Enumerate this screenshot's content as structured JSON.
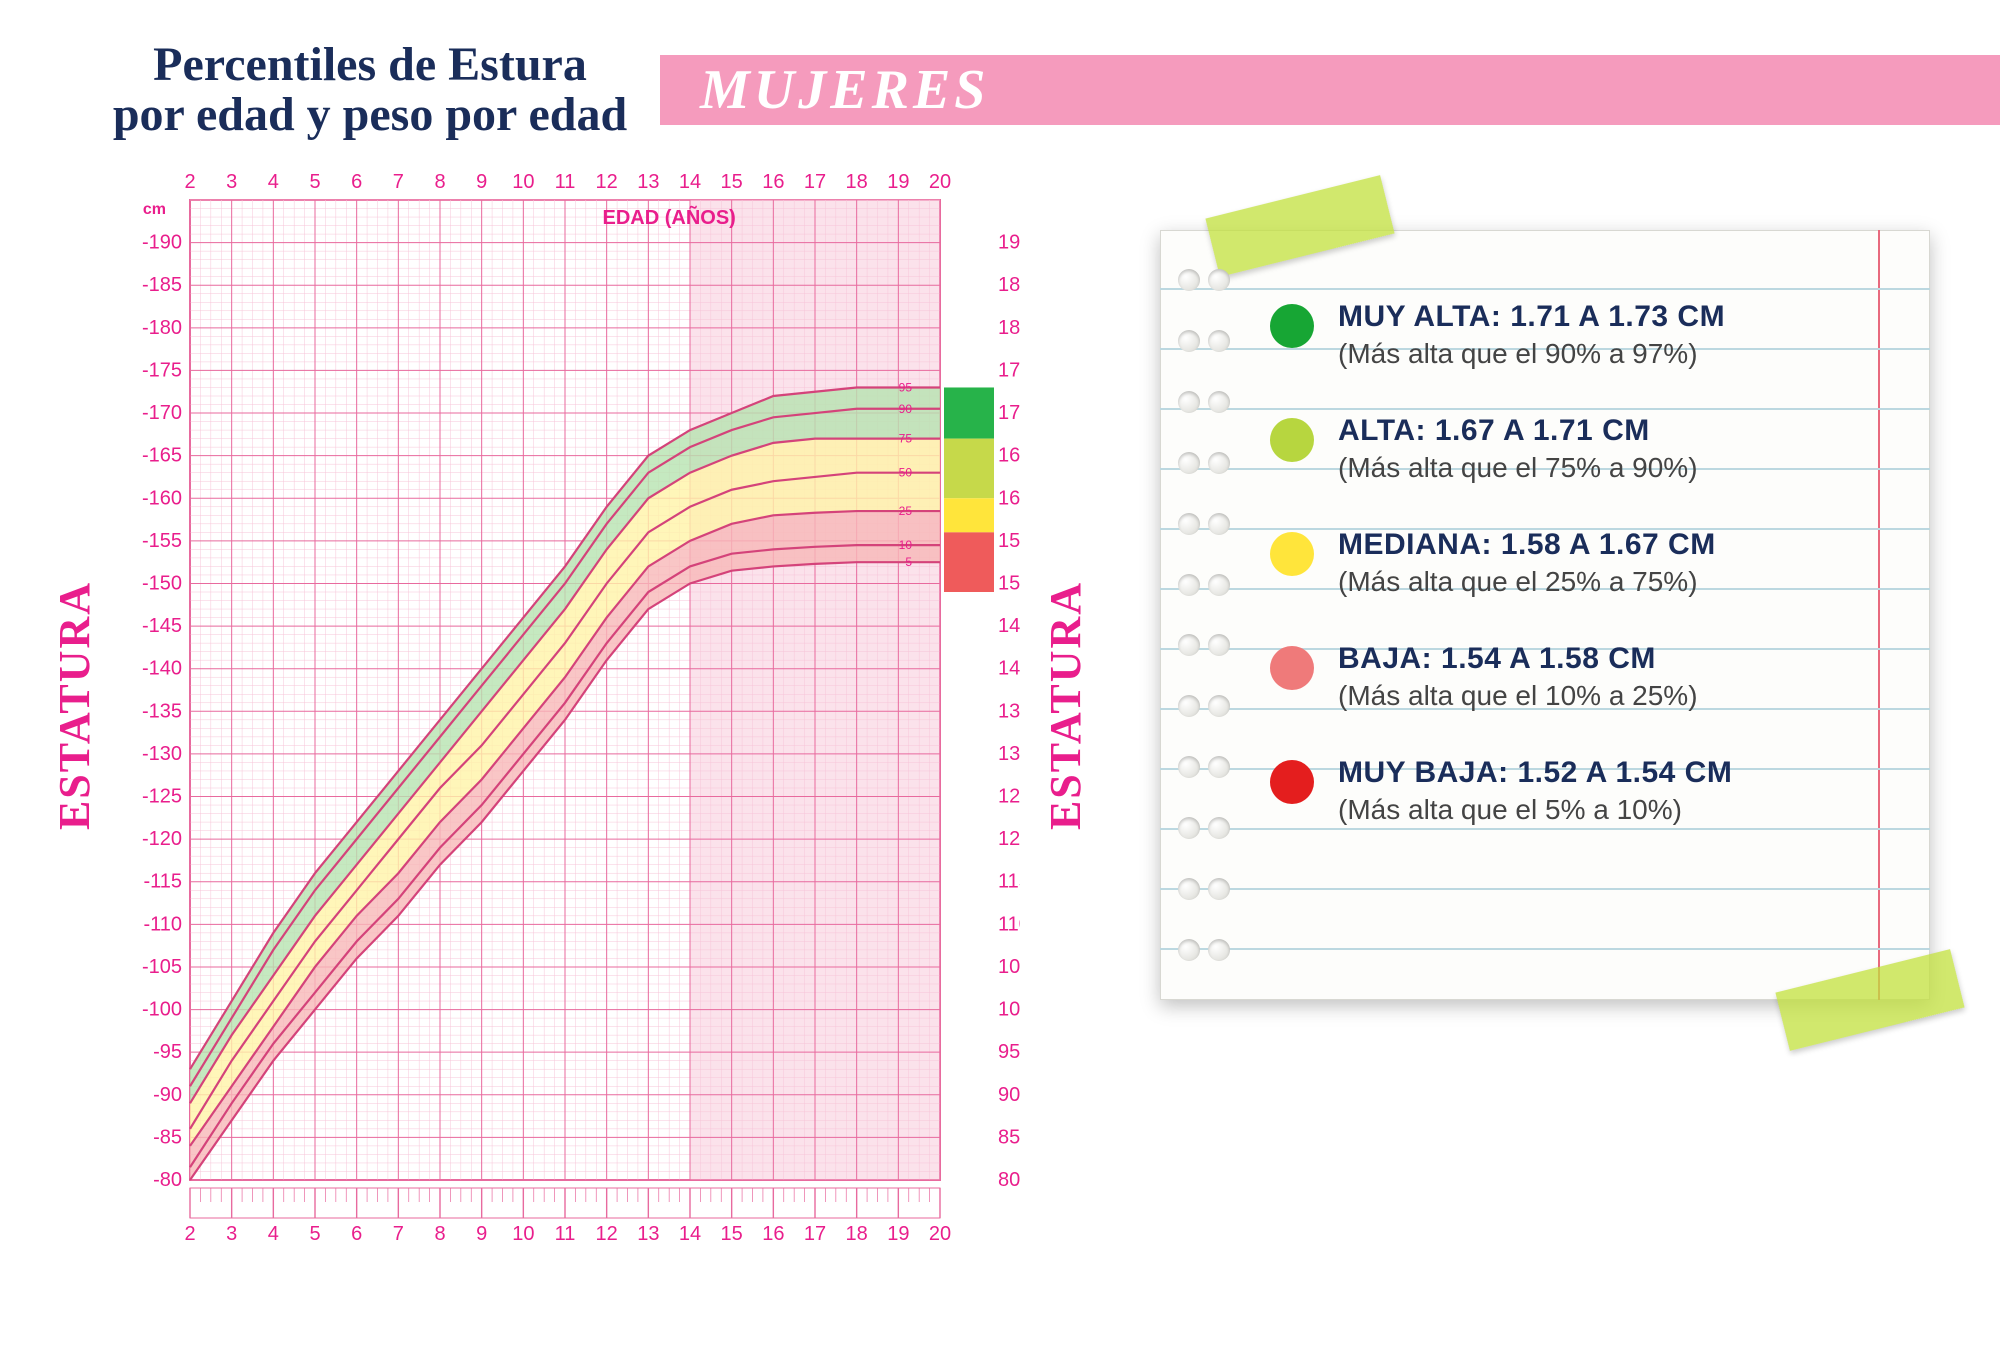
{
  "header": {
    "title_line1": "Percentiles de Estura",
    "title_line2": "por edad y peso por edad",
    "banner": "MUJERES",
    "banner_bg": "#f59bbd",
    "banner_fg": "#ffffff",
    "title_color": "#1a2d5a"
  },
  "chart": {
    "type": "line",
    "axis_vertical_label": "ESTATURA",
    "x_label": "EDAD (AÑOS)",
    "y_unit": "cm",
    "xlim": [
      2,
      20
    ],
    "x_ticks": [
      2,
      3,
      4,
      5,
      6,
      7,
      8,
      9,
      10,
      11,
      12,
      13,
      14,
      15,
      16,
      17,
      18,
      19,
      20
    ],
    "ylim": [
      80,
      195
    ],
    "y_ticks": [
      80,
      85,
      90,
      95,
      100,
      105,
      110,
      115,
      120,
      125,
      130,
      135,
      140,
      145,
      150,
      155,
      160,
      165,
      170,
      175,
      180,
      185,
      190
    ],
    "right_percentile_labels": [
      95,
      90,
      75,
      50,
      25,
      10,
      5
    ],
    "grid_color": "#e86a9e",
    "grid_minor_color": "#f7c5d8",
    "bg_color": "#ffffff",
    "axis_font_color": "#e91e8c",
    "axis_label_fontsize": 18,
    "tick_fontsize": 20,
    "highlight_band": {
      "x_from": 14,
      "x_to": 20,
      "fill": "#f9cedd"
    },
    "right_highlight_bands": [
      {
        "y_from": 167,
        "y_to": 173,
        "fill": "#27b34a"
      },
      {
        "y_from": 160,
        "y_to": 167,
        "fill": "#c6d94a"
      },
      {
        "y_from": 156,
        "y_to": 160,
        "fill": "#ffe53b"
      },
      {
        "y_from": 149,
        "y_to": 156,
        "fill": "#ef5b5b"
      }
    ],
    "curves": [
      {
        "name": "p5",
        "percentile": 5,
        "color": "#d4437a",
        "pts": [
          [
            2,
            80
          ],
          [
            3,
            87
          ],
          [
            4,
            94
          ],
          [
            5,
            100
          ],
          [
            6,
            106
          ],
          [
            7,
            111
          ],
          [
            8,
            117
          ],
          [
            9,
            122
          ],
          [
            10,
            128
          ],
          [
            11,
            134
          ],
          [
            12,
            141
          ],
          [
            13,
            147
          ],
          [
            14,
            150
          ],
          [
            15,
            151.5
          ],
          [
            16,
            152
          ],
          [
            17,
            152.3
          ],
          [
            18,
            152.5
          ],
          [
            19,
            152.5
          ],
          [
            20,
            152.5
          ]
        ]
      },
      {
        "name": "p10",
        "percentile": 10,
        "color": "#d4437a",
        "pts": [
          [
            2,
            81.5
          ],
          [
            3,
            89
          ],
          [
            4,
            96
          ],
          [
            5,
            102
          ],
          [
            6,
            108
          ],
          [
            7,
            113
          ],
          [
            8,
            119
          ],
          [
            9,
            124
          ],
          [
            10,
            130
          ],
          [
            11,
            136
          ],
          [
            12,
            143
          ],
          [
            13,
            149
          ],
          [
            14,
            152
          ],
          [
            15,
            153.5
          ],
          [
            16,
            154
          ],
          [
            17,
            154.3
          ],
          [
            18,
            154.5
          ],
          [
            19,
            154.5
          ],
          [
            20,
            154.5
          ]
        ]
      },
      {
        "name": "p25",
        "percentile": 25,
        "color": "#d4437a",
        "pts": [
          [
            2,
            84
          ],
          [
            3,
            91
          ],
          [
            4,
            98
          ],
          [
            5,
            105
          ],
          [
            6,
            111
          ],
          [
            7,
            116
          ],
          [
            8,
            122
          ],
          [
            9,
            127
          ],
          [
            10,
            133
          ],
          [
            11,
            139
          ],
          [
            12,
            146
          ],
          [
            13,
            152
          ],
          [
            14,
            155
          ],
          [
            15,
            157
          ],
          [
            16,
            158
          ],
          [
            17,
            158.3
          ],
          [
            18,
            158.5
          ],
          [
            19,
            158.5
          ],
          [
            20,
            158.5
          ]
        ]
      },
      {
        "name": "p50",
        "percentile": 50,
        "color": "#d4437a",
        "pts": [
          [
            2,
            86
          ],
          [
            3,
            94
          ],
          [
            4,
            101
          ],
          [
            5,
            108
          ],
          [
            6,
            114
          ],
          [
            7,
            120
          ],
          [
            8,
            126
          ],
          [
            9,
            131
          ],
          [
            10,
            137
          ],
          [
            11,
            143
          ],
          [
            12,
            150
          ],
          [
            13,
            156
          ],
          [
            14,
            159
          ],
          [
            15,
            161
          ],
          [
            16,
            162
          ],
          [
            17,
            162.5
          ],
          [
            18,
            163
          ],
          [
            19,
            163
          ],
          [
            20,
            163
          ]
        ]
      },
      {
        "name": "p75",
        "percentile": 75,
        "color": "#d4437a",
        "pts": [
          [
            2,
            89
          ],
          [
            3,
            97
          ],
          [
            4,
            104
          ],
          [
            5,
            111
          ],
          [
            6,
            117
          ],
          [
            7,
            123
          ],
          [
            8,
            129
          ],
          [
            9,
            135
          ],
          [
            10,
            141
          ],
          [
            11,
            147
          ],
          [
            12,
            154
          ],
          [
            13,
            160
          ],
          [
            14,
            163
          ],
          [
            15,
            165
          ],
          [
            16,
            166.5
          ],
          [
            17,
            167
          ],
          [
            18,
            167
          ],
          [
            19,
            167
          ],
          [
            20,
            167
          ]
        ]
      },
      {
        "name": "p90",
        "percentile": 90,
        "color": "#d4437a",
        "pts": [
          [
            2,
            91
          ],
          [
            3,
            99
          ],
          [
            4,
            107
          ],
          [
            5,
            114
          ],
          [
            6,
            120
          ],
          [
            7,
            126
          ],
          [
            8,
            132
          ],
          [
            9,
            138
          ],
          [
            10,
            144
          ],
          [
            11,
            150
          ],
          [
            12,
            157
          ],
          [
            13,
            163
          ],
          [
            14,
            166
          ],
          [
            15,
            168
          ],
          [
            16,
            169.5
          ],
          [
            17,
            170
          ],
          [
            18,
            170.5
          ],
          [
            19,
            170.5
          ],
          [
            20,
            170.5
          ]
        ]
      },
      {
        "name": "p95",
        "percentile": 95,
        "color": "#d4437a",
        "pts": [
          [
            2,
            93
          ],
          [
            3,
            101
          ],
          [
            4,
            109
          ],
          [
            5,
            116
          ],
          [
            6,
            122
          ],
          [
            7,
            128
          ],
          [
            8,
            134
          ],
          [
            9,
            140
          ],
          [
            10,
            146
          ],
          [
            11,
            152
          ],
          [
            12,
            159
          ],
          [
            13,
            165
          ],
          [
            14,
            168
          ],
          [
            15,
            170
          ],
          [
            16,
            172
          ],
          [
            17,
            172.5
          ],
          [
            18,
            173
          ],
          [
            19,
            173
          ],
          [
            20,
            173
          ]
        ]
      }
    ],
    "bands": [
      {
        "top": "p95",
        "bottom": "p75",
        "fill": "#b6e3b0",
        "opacity": 0.8
      },
      {
        "top": "p75",
        "bottom": "p25",
        "fill": "#fff4a8",
        "opacity": 0.8
      },
      {
        "top": "p25",
        "bottom": "p5",
        "fill": "#f7b8b8",
        "opacity": 0.8
      }
    ],
    "line_width": 2.2
  },
  "legend": {
    "notebook_bg": "#fdfdfb",
    "line_color": "#bcd8e0",
    "margin_line_color": "#e86a7e",
    "tape_color": "rgba(193,224,60,.75)",
    "title_color": "#1a2d5a",
    "sub_color": "#444444",
    "title_fontsize": 30,
    "sub_fontsize": 28,
    "items": [
      {
        "color": "#17a634",
        "title": "MUY ALTA: 1.71 A 1.73 CM",
        "sub": "(Más alta que el 90% a 97%)"
      },
      {
        "color": "#b7d63f",
        "title": "ALTA: 1.67 A 1.71 CM",
        "sub": "(Más alta que el 75% a 90%)"
      },
      {
        "color": "#ffe53b",
        "title": "MEDIANA: 1.58 A 1.67 CM",
        "sub": "(Más alta que el 25% a 75%)"
      },
      {
        "color": "#ef7a7a",
        "title": "BAJA: 1.54 A 1.58 CM",
        "sub": "(Más alta que el 10% a 25%)"
      },
      {
        "color": "#e41e1e",
        "title": "MUY BAJA: 1.52 A 1.54 CM",
        "sub": "(Más alta que el 5% a 10%)"
      }
    ]
  }
}
